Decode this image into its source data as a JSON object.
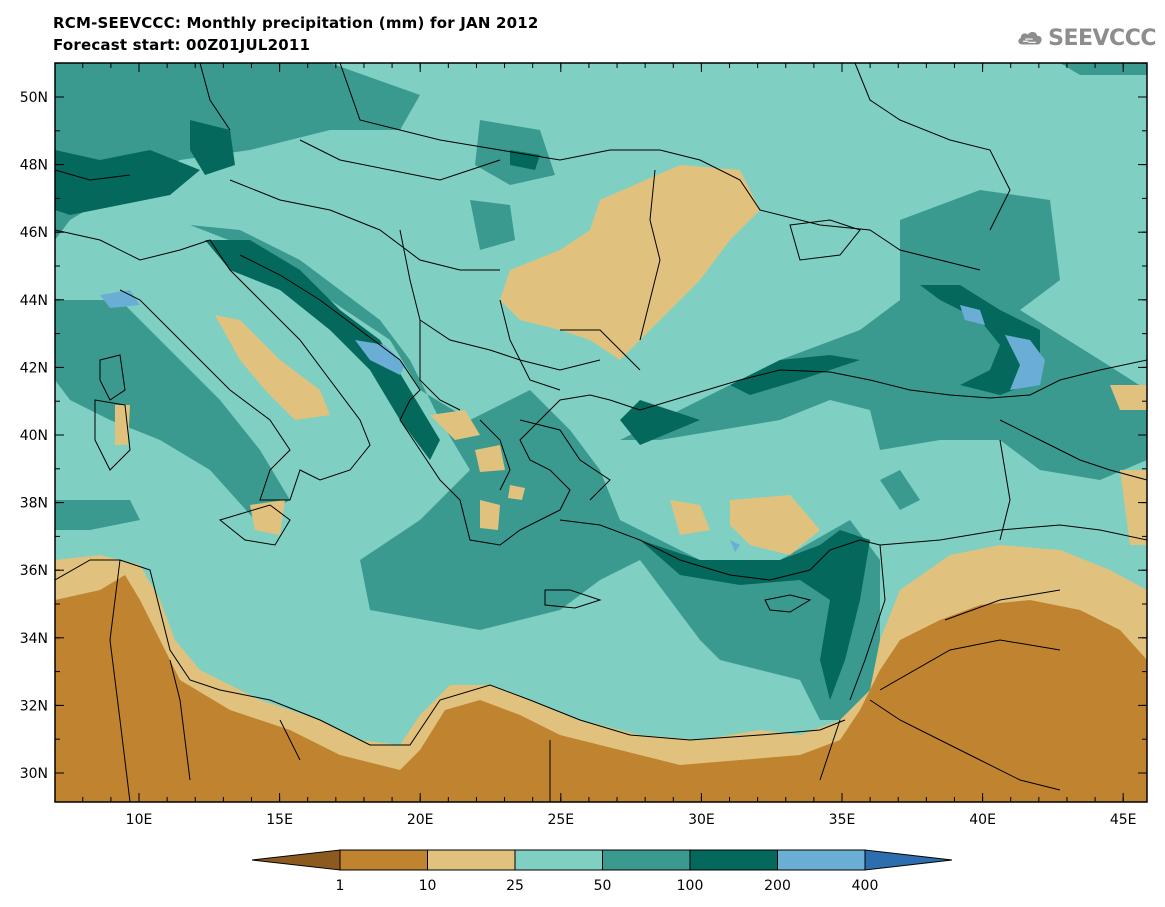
{
  "title_line1": "RCM-SEEVCCC: Monthly precipitation (mm) for JAN 2012",
  "title_line2": "Forecast start: 00Z01JUL2011",
  "logo_text": "SEEVCCC",
  "logo_icon": "cloud-icon",
  "map": {
    "lat_labels": [
      "50N",
      "48N",
      "46N",
      "44N",
      "42N",
      "40N",
      "38N",
      "36N",
      "34N",
      "32N",
      "30N"
    ],
    "lon_labels": [
      "10E",
      "15E",
      "20E",
      "25E",
      "30E",
      "35E",
      "40E",
      "45E"
    ]
  },
  "legend": {
    "labels": [
      "1",
      "10",
      "25",
      "50",
      "100",
      "200",
      "400"
    ],
    "colors": [
      "#8c5a1e",
      "#c08430",
      "#e0c27e",
      "#7fd0c2",
      "#3a9a90",
      "#05685c",
      "#6aaed6",
      "#2d6fae"
    ]
  }
}
